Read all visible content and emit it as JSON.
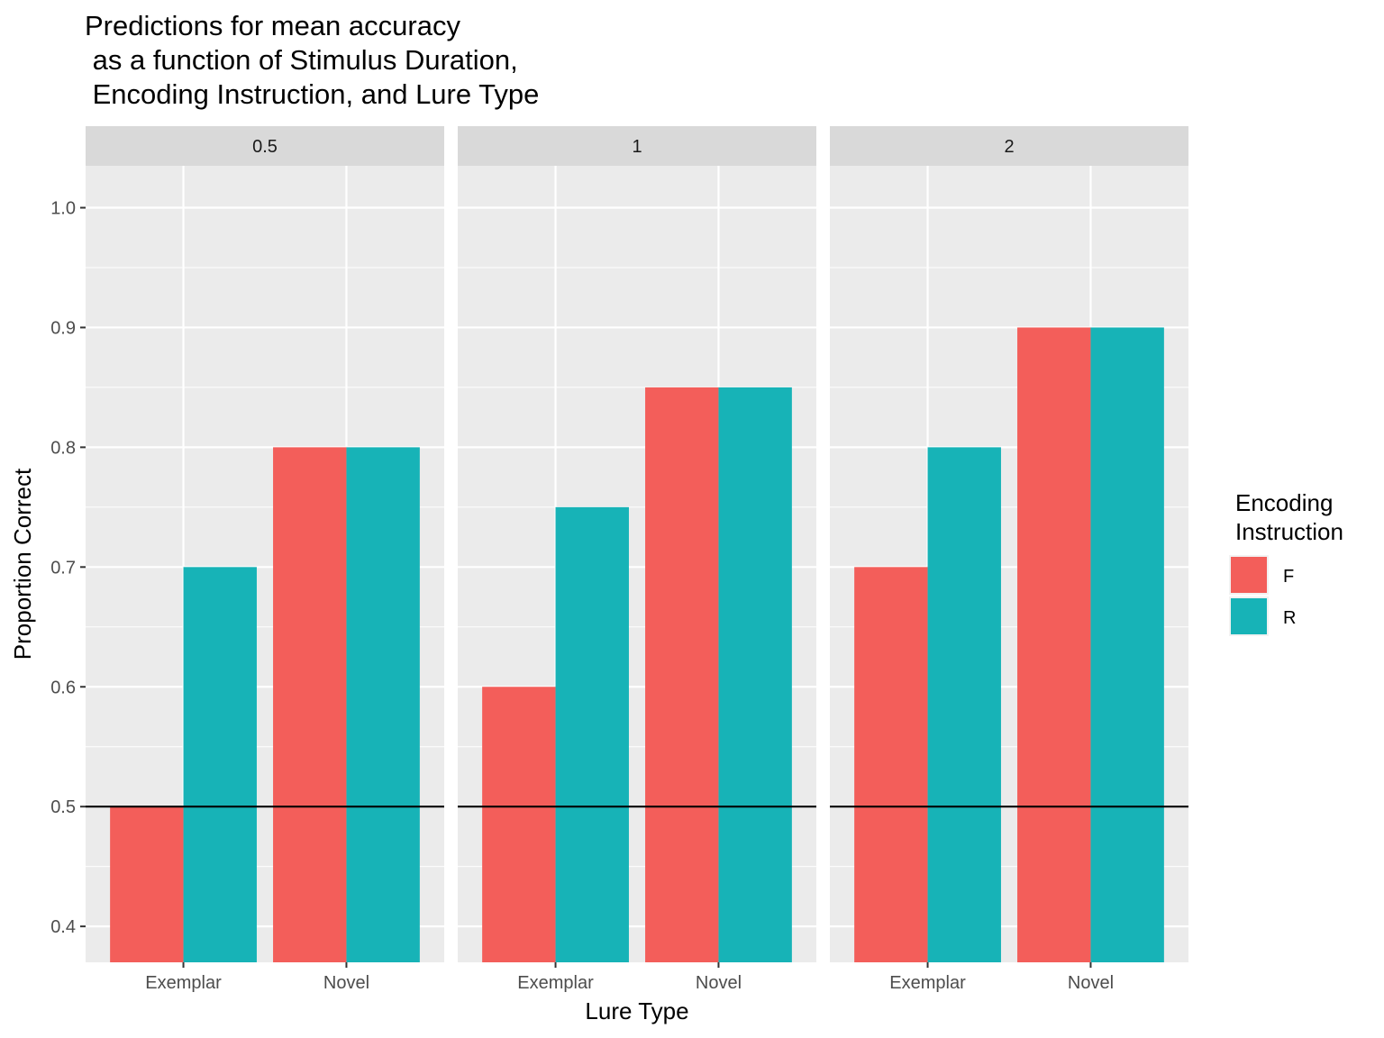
{
  "chart_data": {
    "type": "bar",
    "title_lines": [
      "Predictions for mean accuracy",
      " as a function of Stimulus Duration,",
      " Encoding Instruction, and Lure Type"
    ],
    "xlabel": "Lure Type",
    "ylabel": "Proportion Correct",
    "ylim": [
      0.37,
      1.035
    ],
    "y_ticks": [
      "0.4",
      "0.5",
      "0.6",
      "0.7",
      "0.8",
      "0.9",
      "1.0"
    ],
    "reference_line": 0.5,
    "categories": [
      "Exemplar",
      "Novel"
    ],
    "legend": {
      "title_lines": [
        "Encoding",
        "Instruction"
      ],
      "position": "right"
    },
    "colors": {
      "F": "#F35E5A",
      "R": "#17B3B7"
    },
    "facets": [
      {
        "label": "0.5",
        "series": [
          {
            "name": "F",
            "values": [
              0.5,
              0.8
            ]
          },
          {
            "name": "R",
            "values": [
              0.7,
              0.8
            ]
          }
        ]
      },
      {
        "label": "1",
        "series": [
          {
            "name": "F",
            "values": [
              0.6,
              0.85
            ]
          },
          {
            "name": "R",
            "values": [
              0.75,
              0.85
            ]
          }
        ]
      },
      {
        "label": "2",
        "series": [
          {
            "name": "F",
            "values": [
              0.7,
              0.9
            ]
          },
          {
            "name": "R",
            "values": [
              0.8,
              0.9
            ]
          }
        ]
      }
    ]
  }
}
